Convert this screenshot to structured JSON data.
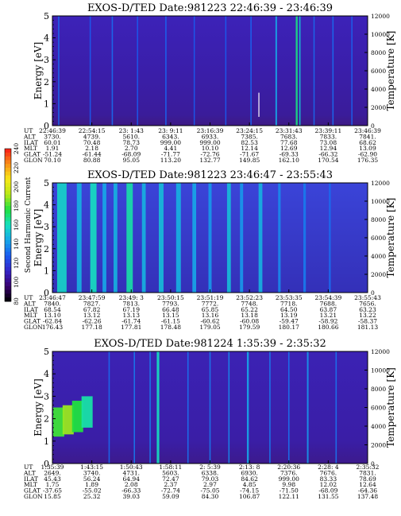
{
  "color_scale": {
    "label": "Second Harmonic Current",
    "ticks": [
      "80",
      "100",
      "120",
      "140",
      "160",
      "180",
      "200",
      "220",
      "240"
    ],
    "colors": [
      "#000000",
      "#3a0070",
      "#3424c8",
      "#1a5cf0",
      "#16a8e8",
      "#16e0c0",
      "#20e040",
      "#b8e818",
      "#f8e818",
      "#f89018",
      "#f81818"
    ]
  },
  "chart_data": [
    {
      "type": "heatmap",
      "title": "EXOS-D/TED   Date:981223  22:46:39 - 23:46:39",
      "ylabel": "Energy [eV]",
      "y2label": "Temperature [K]",
      "ylim": [
        0,
        5
      ],
      "y2lim": [
        0,
        12000
      ],
      "yticks": [
        "0",
        "1",
        "2",
        "3",
        "4",
        "5"
      ],
      "y2ticks": [
        "0",
        "2000",
        "4000",
        "6000",
        "8000",
        "10000",
        "12000"
      ],
      "orbit_rows": [
        {
          "name": "UT",
          "values": [
            "22:46:39",
            "22:54:15",
            "23: 1:43",
            "23: 9:11",
            "23:16:39",
            "23:24:15",
            "23:31:43",
            "23:39:11",
            "23:46:39"
          ]
        },
        {
          "name": "ALT",
          "values": [
            "3730.",
            "4739.",
            "5610.",
            "6343.",
            "6933.",
            "7385.",
            "7683.",
            "7833.",
            "7841."
          ]
        },
        {
          "name": "ILAT",
          "values": [
            "60.01",
            "70.48",
            "78.73",
            "999.00",
            "999.00",
            "82.53",
            "77.68",
            "73.08",
            "68.62"
          ]
        },
        {
          "name": "MLT",
          "values": [
            "1.91",
            "2.18",
            "2.70",
            "4.41",
            "10.10",
            "12.14",
            "12.69",
            "12.94",
            "13.09"
          ]
        },
        {
          "name": "GLAT",
          "values": [
            "-51.24",
            "-61.44",
            "-68.09",
            "-71.77",
            "-72.76",
            "-71.67",
            "-69.33",
            "-66.32",
            "-62.90"
          ]
        },
        {
          "name": "GLON",
          "values": [
            "70.10",
            "80.88",
            "95.05",
            "113.20",
            "132.77",
            "149.85",
            "162.10",
            "170.54",
            "176.35"
          ]
        }
      ],
      "bands": [
        {
          "pos": 0.02,
          "w": 0.004,
          "level": 0.32
        },
        {
          "pos": 0.12,
          "w": 0.003,
          "level": 0.3
        },
        {
          "pos": 0.19,
          "w": 0.004,
          "level": 0.32
        },
        {
          "pos": 0.27,
          "w": 0.003,
          "level": 0.3
        },
        {
          "pos": 0.36,
          "w": 0.004,
          "level": 0.31
        },
        {
          "pos": 0.45,
          "w": 0.003,
          "level": 0.3
        },
        {
          "pos": 0.55,
          "w": 0.003,
          "level": 0.3
        },
        {
          "pos": 0.63,
          "w": 0.004,
          "level": 0.31
        },
        {
          "pos": 0.71,
          "w": 0.005,
          "level": 0.4
        },
        {
          "pos": 0.775,
          "w": 0.006,
          "level": 0.55
        },
        {
          "pos": 0.785,
          "w": 0.004,
          "level": 0.45
        },
        {
          "pos": 0.83,
          "w": 0.003,
          "level": 0.32
        },
        {
          "pos": 0.89,
          "w": 0.004,
          "level": 0.32
        },
        {
          "pos": 0.95,
          "w": 0.003,
          "level": 0.31
        }
      ],
      "spots": [
        {
          "x": 0.655,
          "y0": 0.4,
          "y1": 1.5,
          "level": 1.0
        }
      ]
    },
    {
      "type": "heatmap",
      "title": "EXOS-D/TED   Date:981223  23:46:47 - 23:55:43",
      "ylabel": "Energy [eV]",
      "y2label": "Temperature [K]",
      "ylim": [
        0,
        5
      ],
      "y2lim": [
        0,
        12000
      ],
      "yticks": [
        "0",
        "1",
        "2",
        "3",
        "4",
        "5"
      ],
      "y2ticks": [
        "0",
        "2000",
        "4000",
        "6000",
        "8000",
        "10000",
        "12000"
      ],
      "orbit_rows": [
        {
          "name": "UT",
          "values": [
            "23:46:47",
            "23:47:59",
            "23:49: 3",
            "23:50:15",
            "23:51:19",
            "23:52:23",
            "23:53:35",
            "23:54:39",
            "23:55:43"
          ]
        },
        {
          "name": "ALT",
          "values": [
            "7840.",
            "7827.",
            "7813.",
            "7793.",
            "7772.",
            "7748.",
            "7718.",
            "7688.",
            "7656."
          ]
        },
        {
          "name": "ILAT",
          "values": [
            "68.54",
            "67.82",
            "67.19",
            "66.48",
            "65.85",
            "65.22",
            "64.50",
            "63.87",
            "63.23"
          ]
        },
        {
          "name": "MLT",
          "values": [
            "13.10",
            "13.12",
            "13.13",
            "13.15",
            "13.16",
            "13.18",
            "13.19",
            "13.21",
            "13.22"
          ]
        },
        {
          "name": "GLAT",
          "values": [
            "-62.84",
            "-62.26",
            "-61.74",
            "-61.15",
            "-60.62",
            "-60.08",
            "-59.47",
            "-58.92",
            "-58.37"
          ]
        },
        {
          "name": "GLON",
          "values": [
            "176.43",
            "177.18",
            "177.81",
            "178.48",
            "179.05",
            "179.59",
            "180.17",
            "180.66",
            "181.13"
          ]
        }
      ],
      "bands": [
        {
          "pos": 0.03,
          "w": 0.03,
          "level": 0.48
        },
        {
          "pos": 0.085,
          "w": 0.015,
          "level": 0.42
        },
        {
          "pos": 0.13,
          "w": 0.02,
          "level": 0.5
        },
        {
          "pos": 0.165,
          "w": 0.012,
          "level": 0.4
        },
        {
          "pos": 0.2,
          "w": 0.012,
          "level": 0.42
        },
        {
          "pos": 0.245,
          "w": 0.02,
          "level": 0.52
        },
        {
          "pos": 0.29,
          "w": 0.012,
          "level": 0.42
        },
        {
          "pos": 0.345,
          "w": 0.015,
          "level": 0.44
        },
        {
          "pos": 0.4,
          "w": 0.015,
          "level": 0.42
        },
        {
          "pos": 0.45,
          "w": 0.012,
          "level": 0.4
        },
        {
          "pos": 0.5,
          "w": 0.01,
          "level": 0.38
        },
        {
          "pos": 0.56,
          "w": 0.012,
          "level": 0.44
        },
        {
          "pos": 0.6,
          "w": 0.01,
          "level": 0.38
        },
        {
          "pos": 0.66,
          "w": 0.012,
          "level": 0.42
        },
        {
          "pos": 0.72,
          "w": 0.008,
          "level": 0.36
        },
        {
          "pos": 0.8,
          "w": 0.008,
          "level": 0.34
        },
        {
          "pos": 0.88,
          "w": 0.006,
          "level": 0.32
        }
      ],
      "spots": []
    },
    {
      "type": "heatmap",
      "title": "EXOS-D/TED   Date:981224   1:35:39 - 2:35:32",
      "ylabel": "Energy [eV]",
      "y2label": "Temperature [K]",
      "ylim": [
        0,
        5
      ],
      "y2lim": [
        0,
        12000
      ],
      "yticks": [
        "0",
        "1",
        "2",
        "3",
        "4",
        "5"
      ],
      "y2ticks": [
        "0",
        "2000",
        "4000",
        "6000",
        "8000",
        "10000",
        "12000"
      ],
      "orbit_rows": [
        {
          "name": "UT",
          "values": [
            "1:35:39",
            "1:43:15",
            "1:50:43",
            "1:58:11",
            "2: 5:39",
            "2:13: 8",
            "2:20:36",
            "2:28: 4",
            "2:35:32"
          ]
        },
        {
          "name": "ALT",
          "values": [
            "2649.",
            "3740.",
            "4731.",
            "5603.",
            "6338.",
            "6930.",
            "7376.",
            "7676.",
            "7831."
          ]
        },
        {
          "name": "ILAT",
          "values": [
            "45.43",
            "56.24",
            "64.94",
            "72.47",
            "79.03",
            "84.62",
            "999.00",
            "83.33",
            "78.69"
          ]
        },
        {
          "name": "MLT",
          "values": [
            "1.75",
            "1.89",
            "2.08",
            "2.37",
            "2.97",
            "4.85",
            "9.98",
            "12.02",
            "12.64"
          ]
        },
        {
          "name": "GLAT",
          "values": [
            "-37.65",
            "-55.02",
            "-66.33",
            "-72.74",
            "-75.05",
            "-74.15",
            "-71.50",
            "-68.09",
            "-64.36"
          ]
        },
        {
          "name": "GLON",
          "values": [
            "15.85",
            "25.32",
            "39.03",
            "59.09",
            "84.30",
            "106.87",
            "122.11",
            "131.55",
            "137.48"
          ]
        }
      ],
      "bands": [
        {
          "pos": 0.18,
          "w": 0.004,
          "level": 0.32
        },
        {
          "pos": 0.26,
          "w": 0.004,
          "level": 0.34
        },
        {
          "pos": 0.31,
          "w": 0.004,
          "level": 0.34
        },
        {
          "pos": 0.335,
          "w": 0.008,
          "level": 0.5
        },
        {
          "pos": 0.43,
          "w": 0.004,
          "level": 0.33
        },
        {
          "pos": 0.5,
          "w": 0.004,
          "level": 0.34
        },
        {
          "pos": 0.56,
          "w": 0.004,
          "level": 0.36
        },
        {
          "pos": 0.62,
          "w": 0.006,
          "level": 0.4
        },
        {
          "pos": 0.69,
          "w": 0.004,
          "level": 0.34
        },
        {
          "pos": 0.75,
          "w": 0.004,
          "level": 0.33
        },
        {
          "pos": 0.81,
          "w": 0.005,
          "level": 0.38
        },
        {
          "pos": 0.9,
          "w": 0.004,
          "level": 0.33
        }
      ],
      "spots": [
        {
          "x": 0.02,
          "y0": 1.2,
          "y1": 2.5,
          "level": 0.62
        },
        {
          "x": 0.05,
          "y0": 1.3,
          "y1": 2.6,
          "level": 0.68
        },
        {
          "x": 0.08,
          "y0": 1.4,
          "y1": 2.8,
          "level": 0.6
        },
        {
          "x": 0.11,
          "y0": 1.6,
          "y1": 3.0,
          "level": 0.52
        }
      ]
    }
  ]
}
